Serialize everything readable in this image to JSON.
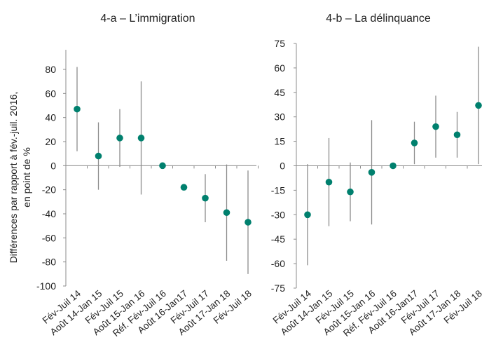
{
  "chart_data": [
    {
      "type": "scatter",
      "title": "4-a – L’immigration",
      "ylabel_lines": [
        "Différences par rapport à fév.-juil. 2016,",
        "en point de  %"
      ],
      "ylim": [
        -100,
        95
      ],
      "yticks": [
        80,
        60,
        40,
        20,
        0,
        -20,
        -40,
        -60,
        -80,
        -100
      ],
      "categories": [
        "Fév-Juil 14",
        "Août 14-Jan 15",
        "Fév-Juil 15",
        "Août 15-Jan 16",
        "Réf. Fév-Juil 16",
        "Août 16-Jan17",
        "Fév-Juil 17",
        "Août 17-Jan 18",
        "Fév-Juil 18"
      ],
      "values": [
        47,
        8,
        23,
        23,
        0,
        -18,
        -27,
        -39,
        -47
      ],
      "ci_low": [
        12,
        -20,
        -1,
        -24,
        0,
        -18,
        -47,
        -79,
        -90
      ],
      "ci_high": [
        82,
        36,
        47,
        70,
        0,
        -18,
        -7,
        1,
        -4
      ],
      "grid": false,
      "marker_color": "#00806e",
      "errorbar_color": "#8c8c8c"
    },
    {
      "type": "scatter",
      "title": "4-b – La délinquance",
      "ylim": [
        -75,
        75
      ],
      "yticks": [
        75,
        60,
        45,
        30,
        15,
        0,
        -15,
        -30,
        -45,
        -60,
        -75
      ],
      "categories": [
        "Fév-Juil 14",
        "Août 14-Jan 15",
        "Fév-Juil 15",
        "Août 15-Jan 16",
        "Réf. Fév-Juil 16",
        "Août 16-Jan17",
        "Fév-Juil 17",
        "Août 17-Jan 18",
        "Fév-Juil 18"
      ],
      "values": [
        -30,
        -10,
        -16,
        -4,
        0,
        14,
        24,
        19,
        37
      ],
      "ci_low": [
        -61,
        -37,
        -34,
        -36,
        0,
        1,
        5,
        5,
        1
      ],
      "ci_high": [
        1,
        17,
        2,
        28,
        0,
        27,
        43,
        33,
        73
      ],
      "grid": false,
      "marker_color": "#00806e",
      "errorbar_color": "#8c8c8c"
    }
  ]
}
